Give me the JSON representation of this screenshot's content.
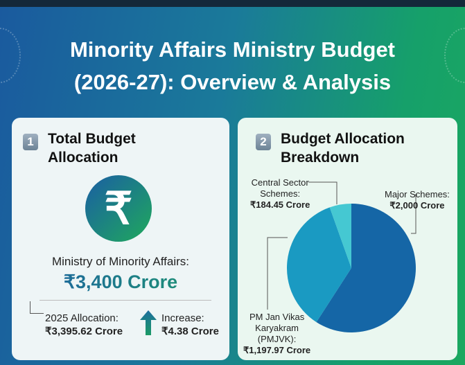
{
  "title_line1": "Minority Affairs Ministry Budget",
  "title_line2": "(2026-27): Overview & Analysis",
  "card1": {
    "number": "1",
    "heading_line1": "Total Budget",
    "heading_line2": "Allocation",
    "icon": "rupee-icon",
    "icon_glyph": "₹",
    "ministry_label": "Ministry of Minority Affairs:",
    "total": "₹3,400 Crore",
    "prev_label": "2025 Allocation:",
    "prev_value": "₹3,395.62 Crore",
    "increase_label": "Increase:",
    "increase_value": "₹4.38 Crore"
  },
  "card2": {
    "number": "2",
    "heading_line1": "Budget Allocation",
    "heading_line2": "Breakdown"
  },
  "chart_data": {
    "type": "pie",
    "start": "top",
    "direction": "clockwise",
    "slices": [
      {
        "label_lines": [
          "Major Schemes:"
        ],
        "value_text": "₹2,000 Crore",
        "value": 2000,
        "color": "#1566a6"
      },
      {
        "label_lines": [
          "PM Jan Vikas",
          "Karyakram",
          "(PMJVK):"
        ],
        "value_text": "₹1,197.97 Crore",
        "value": 1197.97,
        "color": "#1a9ac2"
      },
      {
        "label_lines": [
          "Central Sector",
          "Schemes:"
        ],
        "value_text": "₹184.45 Crore",
        "value": 184.45,
        "color": "#45c8d2"
      }
    ]
  }
}
